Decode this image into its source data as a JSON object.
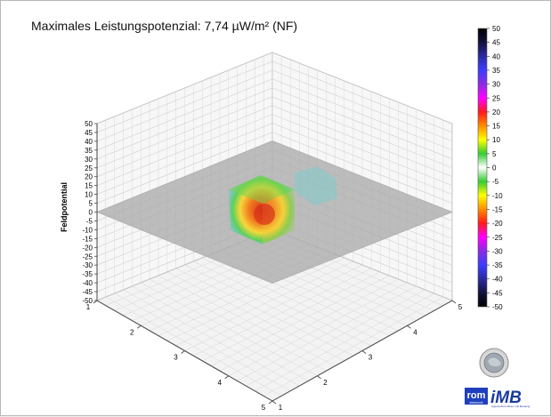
{
  "title": "Maximales Leistungspotenzial:  7,74  µW/m² (NF)",
  "chart_data": {
    "type": "heatmap",
    "subtype": "3d-volume-field",
    "title": "Maximales Leistungspotenzial:  7,74  µW/m² (NF)",
    "zlabel": "Feldpotential",
    "z_ticks": [
      "50",
      "45",
      "40",
      "35",
      "30",
      "25",
      "20",
      "15",
      "10",
      "5",
      "0",
      "-5",
      "-10",
      "-15",
      "-20",
      "-25",
      "-30",
      "-35",
      "-40",
      "-45",
      "-50"
    ],
    "zlim": [
      -50,
      50
    ],
    "x_ticks": [
      "1",
      "2",
      "3",
      "4",
      "5"
    ],
    "y_ticks": [
      "1",
      "2",
      "3",
      "4",
      "5"
    ],
    "xlim": [
      1,
      5
    ],
    "ylim": [
      1,
      5
    ],
    "colorbar_ticks": [
      "50",
      "45",
      "40",
      "35",
      "30",
      "25",
      "20",
      "15",
      "10",
      "5",
      "0",
      "-5",
      "-10",
      "-15",
      "-20",
      "-25",
      "-30",
      "-35",
      "-40",
      "-45",
      "-50"
    ],
    "colorbar_range": [
      -50,
      50
    ],
    "colorbar_colors": [
      "#000000",
      "#12123c",
      "#2a2aa0",
      "#3c3cff",
      "#8a2be2",
      "#ff00ff",
      "#ff1a1a",
      "#ff8c00",
      "#ffff00",
      "#33cc33",
      "#ffffff",
      "#33cc33",
      "#ffff00",
      "#ff8c00",
      "#ff1a1a",
      "#ff00ff",
      "#8a2be2",
      "#3c3cff",
      "#2a2aa0",
      "#12123c",
      "#000000"
    ],
    "grid": true,
    "field_max": "7,74",
    "hotspot": {
      "color_core": "#e33b1a",
      "color_edge": "#3ed0c8",
      "color_mid": "#ffd21f"
    }
  },
  "logos": {
    "seal_icon": "earth-seal-icon",
    "brand_logo": "rom-imb-logo",
    "brand_colors": [
      "#1f3fbf",
      "#1a3a9e"
    ]
  }
}
